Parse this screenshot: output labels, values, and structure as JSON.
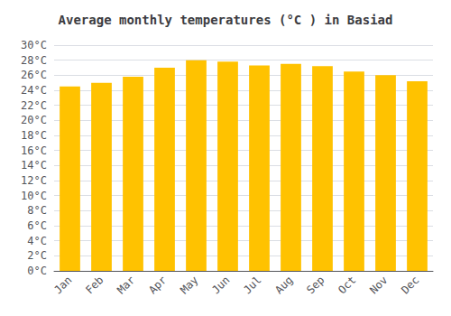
{
  "chart_data": {
    "type": "bar",
    "title": "Average monthly temperatures (°C ) in Basiad",
    "categories": [
      "Jan",
      "Feb",
      "Mar",
      "Apr",
      "May",
      "Jun",
      "Jul",
      "Aug",
      "Sep",
      "Oct",
      "Nov",
      "Dec"
    ],
    "values": [
      24.5,
      25.0,
      25.8,
      27.0,
      28.0,
      27.8,
      27.3,
      27.5,
      27.2,
      26.5,
      26.0,
      25.2
    ],
    "color": "#FFC200",
    "ylim": [
      0,
      30
    ],
    "yticks": [
      {
        "value": 0,
        "label": "0°C"
      },
      {
        "value": 2,
        "label": "2°C"
      },
      {
        "value": 4,
        "label": "4°C"
      },
      {
        "value": 6,
        "label": "6°C"
      },
      {
        "value": 8,
        "label": "8°C"
      },
      {
        "value": 10,
        "label": "10°C"
      },
      {
        "value": 12,
        "label": "12°C"
      },
      {
        "value": 14,
        "label": "14°C"
      },
      {
        "value": 16,
        "label": "16°C"
      },
      {
        "value": 18,
        "label": "18°C"
      },
      {
        "value": 20,
        "label": "20°C"
      },
      {
        "value": 22,
        "label": "22°C"
      },
      {
        "value": 24,
        "label": "24°C"
      },
      {
        "value": 26,
        "label": "26°C"
      },
      {
        "value": 28,
        "label": "28°C"
      },
      {
        "value": 30,
        "label": "30°C"
      }
    ],
    "grid": true
  }
}
